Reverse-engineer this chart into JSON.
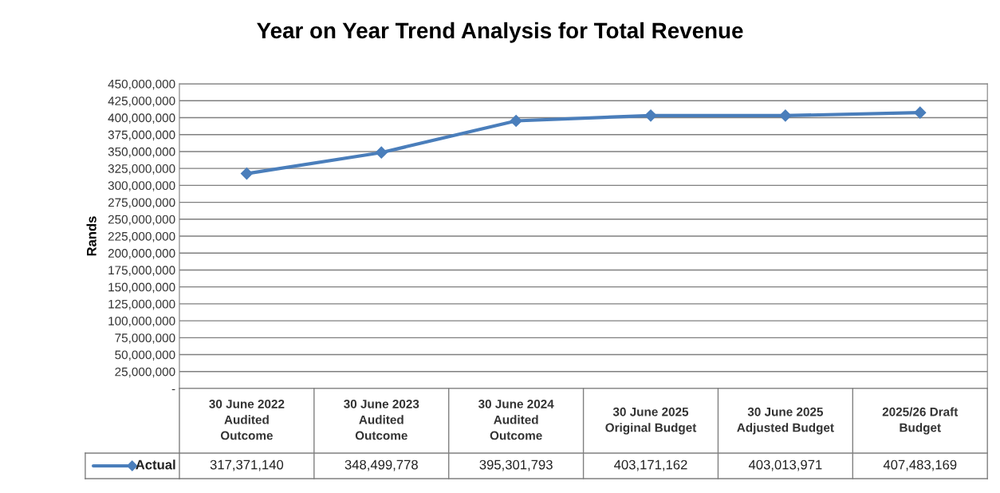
{
  "chart_data": {
    "type": "line",
    "title": "Year on Year Trend Analysis for Total Revenue",
    "ylabel": "Rands",
    "categories": [
      "30 June 2022\nAudited\nOutcome",
      "30 June 2023\nAudited\nOutcome",
      "30 June 2024\nAudited\nOutcome",
      "30 June 2025\nOriginal Budget",
      "30 June 2025\nAdjusted Budget",
      "2025/26 Draft\nBudget"
    ],
    "series": [
      {
        "name": "Actual",
        "color": "#4a7ebb",
        "values": [
          317371140,
          348499778,
          395301793,
          403171162,
          403013971,
          407483169
        ],
        "value_labels": [
          "317,371,140",
          "348,499,778",
          "395,301,793",
          "403,171,162",
          "403,013,971",
          "407,483,169"
        ]
      }
    ],
    "ylim": [
      0,
      450000000
    ],
    "yticks": [
      {
        "value": 0,
        "label": "-"
      },
      {
        "value": 25000000,
        "label": "25,000,000"
      },
      {
        "value": 50000000,
        "label": "50,000,000"
      },
      {
        "value": 75000000,
        "label": "75,000,000"
      },
      {
        "value": 100000000,
        "label": "100,000,000"
      },
      {
        "value": 125000000,
        "label": "125,000,000"
      },
      {
        "value": 150000000,
        "label": "150,000,000"
      },
      {
        "value": 175000000,
        "label": "175,000,000"
      },
      {
        "value": 200000000,
        "label": "200,000,000"
      },
      {
        "value": 225000000,
        "label": "225,000,000"
      },
      {
        "value": 250000000,
        "label": "250,000,000"
      },
      {
        "value": 275000000,
        "label": "275,000,000"
      },
      {
        "value": 300000000,
        "label": "300,000,000"
      },
      {
        "value": 325000000,
        "label": "325,000,000"
      },
      {
        "value": 350000000,
        "label": "350,000,000"
      },
      {
        "value": 375000000,
        "label": "375,000,000"
      },
      {
        "value": 400000000,
        "label": "400,000,000"
      },
      {
        "value": 425000000,
        "label": "425,000,000"
      },
      {
        "value": 450000000,
        "label": "450,000,000"
      }
    ],
    "grid": "y",
    "legend": "bottom",
    "marker": "diamond",
    "line_style": "solid"
  }
}
